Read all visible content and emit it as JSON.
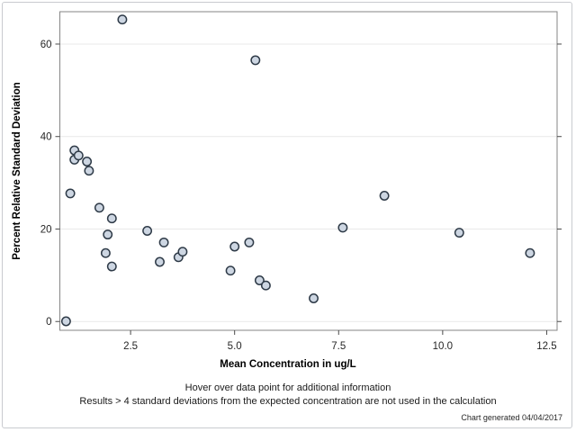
{
  "chart_data": {
    "type": "scatter",
    "title": "",
    "xlabel": "Mean Concentration in ug/L",
    "ylabel": "Percent Relative Standard Deviation",
    "xlim": [
      0.8,
      12.75
    ],
    "ylim": [
      -1.9,
      67
    ],
    "x_ticks": [
      2.5,
      5.0,
      7.5,
      10.0,
      12.5
    ],
    "x_tick_labels": [
      "2.5",
      "5.0",
      "7.5",
      "10.0",
      "12.5"
    ],
    "y_ticks": [
      0,
      20,
      40,
      60
    ],
    "y_tick_labels": [
      "0",
      "20",
      "40",
      "60"
    ],
    "grid": "horizontal-only",
    "legend": "none",
    "points": [
      [
        0.95,
        0.05
      ],
      [
        1.05,
        27.7
      ],
      [
        1.15,
        37.0
      ],
      [
        1.15,
        35.0
      ],
      [
        1.25,
        35.9
      ],
      [
        1.45,
        34.6
      ],
      [
        1.5,
        32.6
      ],
      [
        1.75,
        24.6
      ],
      [
        1.9,
        14.8
      ],
      [
        1.95,
        18.8
      ],
      [
        2.05,
        22.3
      ],
      [
        2.05,
        11.9
      ],
      [
        2.3,
        65.3
      ],
      [
        2.9,
        19.6
      ],
      [
        3.2,
        12.9
      ],
      [
        3.3,
        17.1
      ],
      [
        3.65,
        13.9
      ],
      [
        3.75,
        15.1
      ],
      [
        4.9,
        11.0
      ],
      [
        5.0,
        16.2
      ],
      [
        5.35,
        17.1
      ],
      [
        5.5,
        56.5
      ],
      [
        5.6,
        8.9
      ],
      [
        5.75,
        7.8
      ],
      [
        6.9,
        5.0
      ],
      [
        7.6,
        20.3
      ],
      [
        8.6,
        27.2
      ],
      [
        10.4,
        19.2
      ],
      [
        12.1,
        14.8
      ]
    ]
  },
  "footnotes": {
    "hover_hint": "Hover over data point for additional information",
    "exclusion_note": "Results > 4 standard deviations from the expected concentration are not used in the calculation",
    "credit": "Chart generated 04/04/2017"
  },
  "colors": {
    "marker_fill": "#cdd6e2",
    "marker_stroke": "#2e3a47",
    "gridline": "#e9e9e9",
    "plot_frame": "#868686",
    "tick": "#4a4a4a",
    "outer_border": "#c9cbcf",
    "background": "#ffffff"
  }
}
